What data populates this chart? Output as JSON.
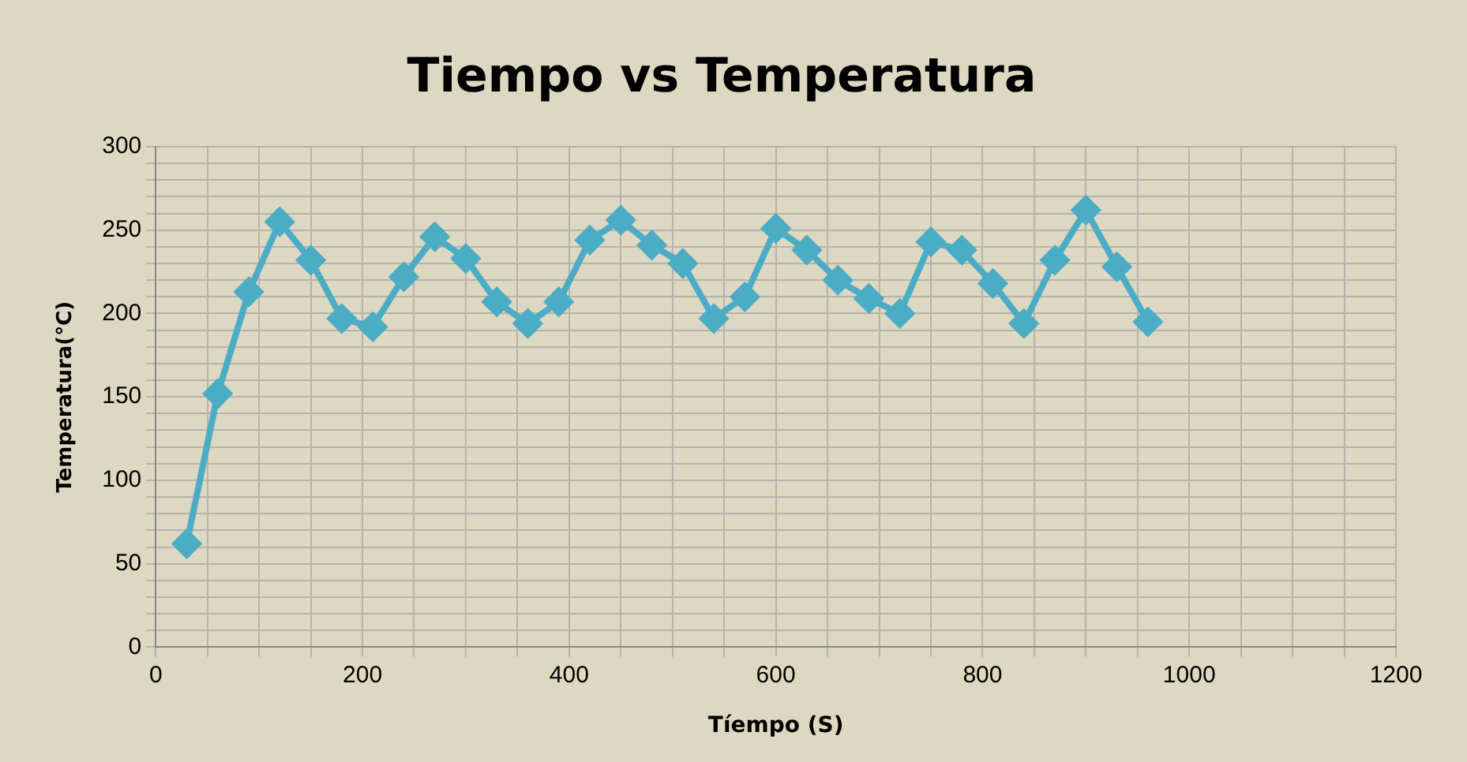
{
  "chart_data": {
    "type": "line",
    "title": "Tiempo vs Temperatura",
    "xlabel": "Tíempo (S)",
    "ylabel": "Temperatura(°C)",
    "x": [
      30,
      60,
      90,
      120,
      150,
      180,
      210,
      240,
      270,
      300,
      330,
      360,
      390,
      420,
      450,
      480,
      510,
      540,
      570,
      600,
      630,
      660,
      690,
      720,
      750,
      780,
      810,
      840,
      870,
      900,
      930,
      960
    ],
    "series": [
      {
        "color": "#4bacc6",
        "values": [
          62,
          152,
          213,
          255,
          232,
          197,
          192,
          222,
          246,
          233,
          207,
          194,
          207,
          244,
          256,
          241,
          230,
          197,
          210,
          251,
          238,
          220,
          209,
          200,
          243,
          238,
          218,
          194,
          232,
          262,
          228,
          195
        ]
      }
    ],
    "xlim": [
      0,
      1200
    ],
    "xticks": [
      0,
      {
        "value": 50,
        "label": null
      },
      {
        "value": 100,
        "label": null
      },
      {
        "value": 150,
        "label": null
      },
      200,
      {
        "value": 250,
        "label": null
      },
      {
        "value": 300,
        "label": null
      },
      {
        "value": 350,
        "label": null
      },
      400,
      {
        "value": 450,
        "label": null
      },
      {
        "value": 500,
        "label": null
      },
      {
        "value": 550,
        "label": null
      },
      600,
      {
        "value": 650,
        "label": null
      },
      {
        "value": 700,
        "label": null
      },
      {
        "value": 750,
        "label": null
      },
      800,
      {
        "value": 850,
        "label": null
      },
      {
        "value": 900,
        "label": null
      },
      {
        "value": 950,
        "label": null
      },
      1000,
      {
        "value": 1050,
        "label": null
      },
      {
        "value": 1100,
        "label": null
      },
      {
        "value": 1150,
        "label": null
      },
      1200
    ],
    "ylim": [
      0,
      300
    ],
    "yticks": [
      0,
      {
        "value": 10,
        "label": null
      },
      {
        "value": 20,
        "label": null
      },
      {
        "value": 30,
        "label": null
      },
      {
        "value": 40,
        "label": null
      },
      50,
      {
        "value": 60,
        "label": null
      },
      {
        "value": 70,
        "label": null
      },
      {
        "value": 80,
        "label": null
      },
      {
        "value": 90,
        "label": null
      },
      100,
      {
        "value": 110,
        "label": null
      },
      {
        "value": 120,
        "label": null
      },
      {
        "value": 130,
        "label": null
      },
      {
        "value": 140,
        "label": null
      },
      150,
      {
        "value": 160,
        "label": null
      },
      {
        "value": 170,
        "label": null
      },
      {
        "value": 180,
        "label": null
      },
      {
        "value": 190,
        "label": null
      },
      200,
      {
        "value": 210,
        "label": null
      },
      {
        "value": 220,
        "label": null
      },
      {
        "value": 230,
        "label": null
      },
      {
        "value": 240,
        "label": null
      },
      250,
      {
        "value": 260,
        "label": null
      },
      {
        "value": 270,
        "label": null
      },
      {
        "value": 280,
        "label": null
      },
      {
        "value": 290,
        "label": null
      },
      300
    ],
    "grid": true,
    "legend": false,
    "marker": "diamond",
    "line_style": "solid"
  }
}
